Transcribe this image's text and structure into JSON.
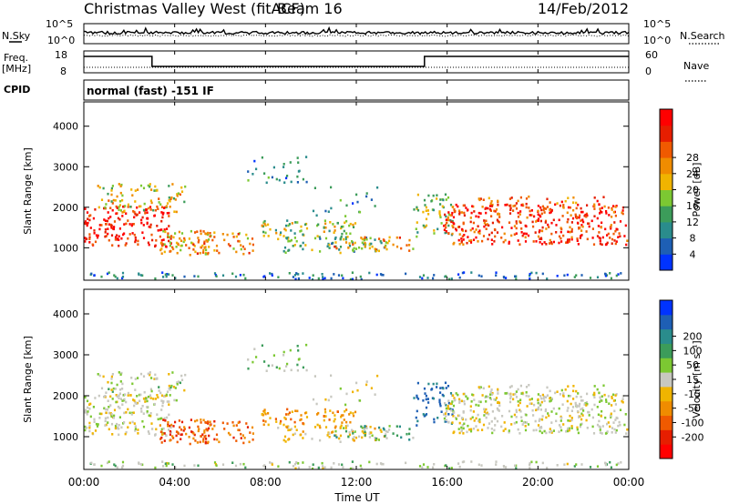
{
  "header": {
    "title": "Christmas Valley West (fitACF)",
    "beam": "Beam 16",
    "date": "14/Feb/2012"
  },
  "labels": {
    "nsky": "N.Sky",
    "nsearch": "N.Search",
    "freq": "Freq.",
    "freq_unit": "[MHz]",
    "nave": "Nave",
    "cpid": "CPID",
    "mode": "normal (fast) -151 IF",
    "xlabel": "Time UT"
  },
  "colors": {
    "power": [
      "#0033ff",
      "#1e5fb4",
      "#2a8c8c",
      "#3c9c5a",
      "#7cc832",
      "#f0b400",
      "#f08c00",
      "#f05a00",
      "#e61e00",
      "#ff0000"
    ],
    "velocity": [
      "#0033ff",
      "#1e5fb4",
      "#2a8c8c",
      "#3c9c5a",
      "#7cc832",
      "#c8c8c0",
      "#f0b400",
      "#f08c00",
      "#f05a00",
      "#e61e00",
      "#ff0000"
    ]
  },
  "chart_data": [
    {
      "type": "line",
      "name": "noise-panel",
      "x_range": [
        0,
        24
      ],
      "left_ticks": [
        "10^5",
        "10^0"
      ],
      "right_ticks": [
        "10^5",
        "10^0"
      ]
    },
    {
      "type": "line",
      "name": "frequency-panel",
      "x_range": [
        0,
        24
      ],
      "left_ticks": [
        "18",
        "8"
      ],
      "right_ticks": [
        "60",
        "0"
      ],
      "freq_segments": [
        {
          "x0": 0,
          "x1": 3,
          "level": "high"
        },
        {
          "x0": 3,
          "x1": 15,
          "level": "low"
        },
        {
          "x0": 15,
          "x1": 24,
          "level": "high"
        }
      ]
    },
    {
      "type": "heatmap",
      "name": "power",
      "xlim": [
        0,
        24
      ],
      "ylim": [
        200,
        4600
      ],
      "ylabel": "Slant Range [km]",
      "y_ticks": [
        1000,
        2000,
        3000,
        4000
      ],
      "colorbar_label": "Power [dB]",
      "colorbar_ticks": [
        "4",
        "8",
        "12",
        "16",
        "20",
        "24",
        "28"
      ]
    },
    {
      "type": "heatmap",
      "name": "velocity",
      "xlim": [
        0,
        24
      ],
      "ylim": [
        200,
        4600
      ],
      "ylabel": "Slant Range [km]",
      "y_ticks": [
        1000,
        2000,
        3000,
        4000
      ],
      "colorbar_label": "Velocity [m s⁻¹]",
      "colorbar_ticks": [
        "-200",
        "-100",
        "-50",
        "-15",
        "15",
        "50",
        "100",
        "200"
      ]
    }
  ],
  "x_ticks": [
    "00:00",
    "04:00",
    "08:00",
    "12:00",
    "16:00",
    "20:00",
    "00:00"
  ],
  "scatter_regions": [
    {
      "t0": 0.0,
      "t1": 3.8,
      "r0": 1050,
      "r1": 2050,
      "p": 27,
      "v": 0,
      "density": 0.85
    },
    {
      "t0": 0.5,
      "t1": 4.5,
      "r0": 1900,
      "r1": 2600,
      "p": 16,
      "v": 5,
      "density": 0.55
    },
    {
      "t0": 3.3,
      "t1": 7.5,
      "r0": 850,
      "r1": 1450,
      "p": 19,
      "v": -90,
      "density": 0.85
    },
    {
      "t0": 7.5,
      "t1": 12.0,
      "r0": 1300,
      "r1": 1700,
      "p": 14,
      "v": -60,
      "density": 0.7
    },
    {
      "t0": 8.5,
      "t1": 13.5,
      "r0": 900,
      "r1": 1300,
      "p": 11,
      "v": -30,
      "density": 0.7
    },
    {
      "t0": 11.0,
      "t1": 14.5,
      "r0": 950,
      "r1": 1300,
      "p": 20,
      "v": 40,
      "density": 0.6
    },
    {
      "t0": 14.5,
      "t1": 16.2,
      "r0": 1300,
      "r1": 2400,
      "p": 12,
      "v": 110,
      "density": 0.55
    },
    {
      "t0": 15.8,
      "t1": 24.0,
      "r0": 1100,
      "r1": 2100,
      "p": 25,
      "v": 0,
      "density": 0.9
    },
    {
      "t0": 17.0,
      "t1": 23.0,
      "r0": 2100,
      "r1": 2300,
      "p": 22,
      "v": 0,
      "density": 0.45
    },
    {
      "t0": 7.0,
      "t1": 10.0,
      "r0": 2600,
      "r1": 3300,
      "p": 7,
      "v": 15,
      "density": 0.25
    },
    {
      "t0": 10.0,
      "t1": 13.0,
      "r0": 1800,
      "r1": 2600,
      "p": 8,
      "v": -10,
      "density": 0.15
    },
    {
      "t0": 0.0,
      "t1": 24.0,
      "r0": 220,
      "r1": 420,
      "p": 6,
      "v": 10,
      "density": 0.55
    }
  ]
}
